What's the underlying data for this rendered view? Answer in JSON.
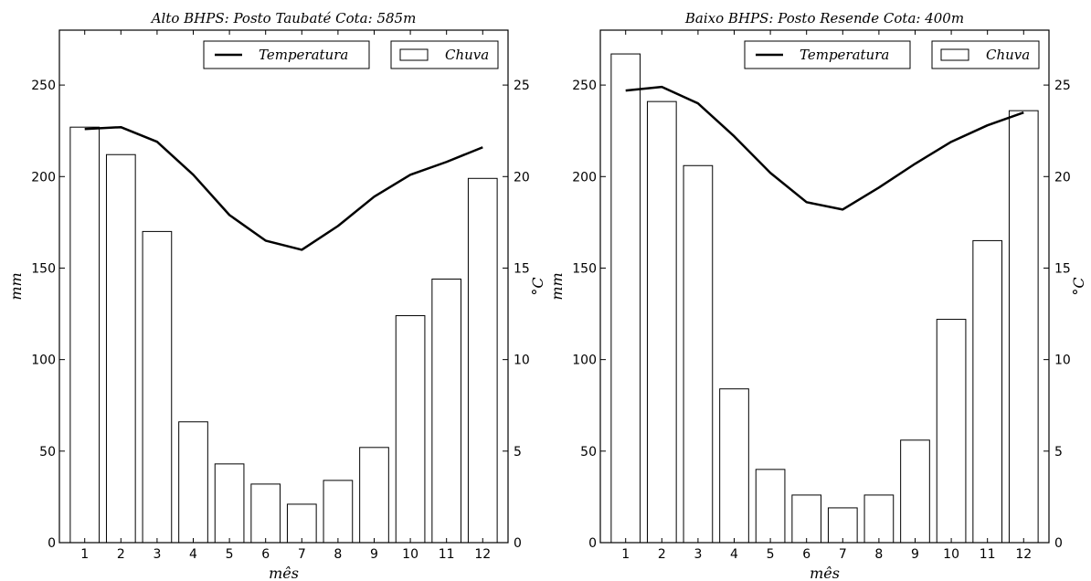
{
  "chart_data": [
    {
      "type": "bar+line",
      "title": "Alto BHPS: Posto Taubaté  Cota: 585m",
      "xlabel": "mês",
      "ylabel": "mm",
      "y2label": "°C",
      "categories": [
        "1",
        "2",
        "3",
        "4",
        "5",
        "6",
        "7",
        "8",
        "9",
        "10",
        "11",
        "12"
      ],
      "ylim": [
        0,
        280
      ],
      "y2lim": [
        0,
        28
      ],
      "yticks": [
        0,
        50,
        100,
        150,
        200,
        250
      ],
      "y2ticks": [
        0,
        5,
        10,
        15,
        20,
        25
      ],
      "legend": "top-right",
      "series": [
        {
          "name": "Chuva",
          "type": "bar",
          "axis": "left",
          "values": [
            227,
            212,
            170,
            66,
            43,
            32,
            21,
            34,
            52,
            124,
            144,
            199
          ]
        },
        {
          "name": "Temperatura",
          "type": "line",
          "axis": "right",
          "values": [
            22.6,
            22.7,
            21.9,
            20.1,
            17.9,
            16.5,
            16.0,
            17.3,
            18.9,
            20.1,
            20.8,
            21.6
          ]
        }
      ]
    },
    {
      "type": "bar+line",
      "title": "Baixo BHPS: Posto Resende  Cota: 400m",
      "xlabel": "mês",
      "ylabel": "mm",
      "y2label": "°C",
      "categories": [
        "1",
        "2",
        "3",
        "4",
        "5",
        "6",
        "7",
        "8",
        "9",
        "10",
        "11",
        "12"
      ],
      "ylim": [
        0,
        280
      ],
      "y2lim": [
        0,
        28
      ],
      "yticks": [
        0,
        50,
        100,
        150,
        200,
        250
      ],
      "y2ticks": [
        0,
        5,
        10,
        15,
        20,
        25
      ],
      "legend": "top-right",
      "series": [
        {
          "name": "Chuva",
          "type": "bar",
          "axis": "left",
          "values": [
            267,
            241,
            206,
            84,
            40,
            26,
            19,
            26,
            56,
            122,
            165,
            236
          ]
        },
        {
          "name": "Temperatura",
          "type": "line",
          "axis": "right",
          "values": [
            24.7,
            24.9,
            24.0,
            22.2,
            20.2,
            18.6,
            18.2,
            19.4,
            20.7,
            21.9,
            22.8,
            23.5
          ]
        }
      ]
    }
  ]
}
